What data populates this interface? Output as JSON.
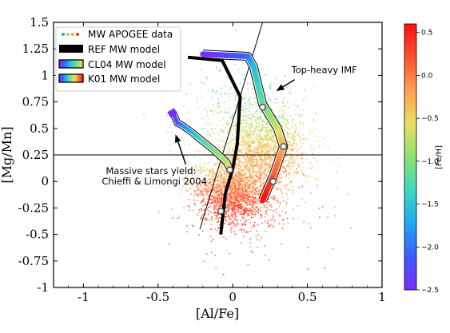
{
  "chart_data": {
    "type": "scatter",
    "xlabel": "[Al/Fe]",
    "ylabel": "[Mg/Mn]",
    "xlim": [
      -1.2,
      1.0
    ],
    "ylim": [
      -1.0,
      1.5
    ],
    "x_ticks": [
      -1,
      -0.5,
      0,
      0.5,
      1
    ],
    "x_tick_labels": [
      "-1",
      "-0.5",
      "0",
      "0.5",
      "1"
    ],
    "y_ticks": [
      -1,
      -0.75,
      -0.5,
      -0.25,
      0,
      0.25,
      0.5,
      0.75,
      1,
      1.25,
      1.5
    ],
    "y_tick_labels": [
      "-1",
      "-0.75",
      "-0.5",
      "-0.25",
      "0",
      "0.25",
      "0.5",
      "0.75",
      "1",
      "1.25",
      "1.5"
    ],
    "grid": false,
    "legend_position": "top-left",
    "reference_lines": {
      "horizontal_y": 0.25,
      "diagonal": [
        [
          -0.22,
          -0.45
        ],
        [
          0.2,
          1.5
        ]
      ]
    },
    "colorbar": {
      "label": "[Fe/H]",
      "range": [
        -2.5,
        0.6
      ],
      "ticks": [
        0.5,
        0.0,
        -0.5,
        -1.0,
        -1.5,
        -2.0,
        -2.5
      ],
      "tick_labels": [
        "0.5",
        "0.0",
        "−0.5",
        "−1.0",
        "−1.5",
        "−2.0",
        "−2.5"
      ],
      "colors": [
        "#7b2cff",
        "#3a5cff",
        "#1fa8f0",
        "#3fd8c0",
        "#8ee070",
        "#e8e060",
        "#ffa050",
        "#ff5030",
        "#ff1010"
      ]
    },
    "series": [
      {
        "name": "MW APOGEE data",
        "kind": "scatter-density",
        "clusters": [
          {
            "cx": 0.2,
            "cy": 0.3,
            "sx": 0.14,
            "sy": 0.17,
            "n": 1400,
            "feh": [
              -0.7,
              0.0
            ]
          },
          {
            "cx": 0.0,
            "cy": -0.1,
            "sx": 0.12,
            "sy": 0.14,
            "n": 1800,
            "feh": [
              -0.3,
              0.45
            ]
          },
          {
            "cx": 0.12,
            "cy": 0.6,
            "sx": 0.18,
            "sy": 0.22,
            "n": 380,
            "feh": [
              -1.3,
              -0.4
            ]
          },
          {
            "cx": 0.1,
            "cy": 0.0,
            "sx": 0.24,
            "sy": 0.32,
            "n": 500,
            "feh": [
              -1.0,
              0.3
            ]
          }
        ]
      },
      {
        "name": "REF MW model",
        "kind": "track",
        "color": "#000000",
        "points": [
          [
            -0.3,
            1.17
          ],
          [
            -0.07,
            1.14
          ],
          [
            0.05,
            0.8
          ],
          [
            0.03,
            0.35
          ],
          [
            0.0,
            0.12
          ],
          [
            -0.05,
            -0.12
          ],
          [
            -0.08,
            -0.5
          ]
        ],
        "markers": [
          [
            -0.02,
            0.11
          ],
          [
            -0.08,
            -0.28
          ]
        ]
      },
      {
        "name": "CL04 MW model",
        "kind": "track",
        "points": [
          [
            -0.4,
            0.65
          ],
          [
            -0.37,
            0.55
          ],
          [
            -0.34,
            0.53
          ],
          [
            -0.27,
            0.46
          ],
          [
            -0.22,
            0.4
          ],
          [
            -0.13,
            0.3
          ],
          [
            -0.04,
            0.18
          ],
          [
            -0.02,
            0.12
          ]
        ],
        "feh": [
          -2.5,
          -0.5
        ]
      },
      {
        "name": "K01 MW model",
        "kind": "track",
        "points": [
          [
            -0.2,
            1.2
          ],
          [
            0.1,
            1.18
          ],
          [
            0.14,
            1.08
          ],
          [
            0.2,
            0.73
          ],
          [
            0.3,
            0.5
          ],
          [
            0.34,
            0.33
          ],
          [
            0.27,
            0.05
          ],
          [
            0.2,
            -0.18
          ]
        ],
        "markers": [
          [
            0.2,
            0.7
          ],
          [
            0.34,
            0.33
          ],
          [
            0.27,
            0.0
          ]
        ],
        "feh": [
          -2.5,
          0.6
        ]
      }
    ],
    "annotations": [
      {
        "text": "Top-heavy IMF",
        "x": 0.5,
        "y": 1.02,
        "arrow_to": [
          0.3,
          0.86
        ]
      },
      {
        "text": "Massive stars yield:",
        "x": -0.85,
        "y": 0.07,
        "arrow_to": [
          -0.38,
          0.43
        ]
      },
      {
        "text": "Chieffi & Limongi 2004",
        "x": -0.85,
        "y": -0.03,
        "arrow_to": null
      }
    ]
  }
}
